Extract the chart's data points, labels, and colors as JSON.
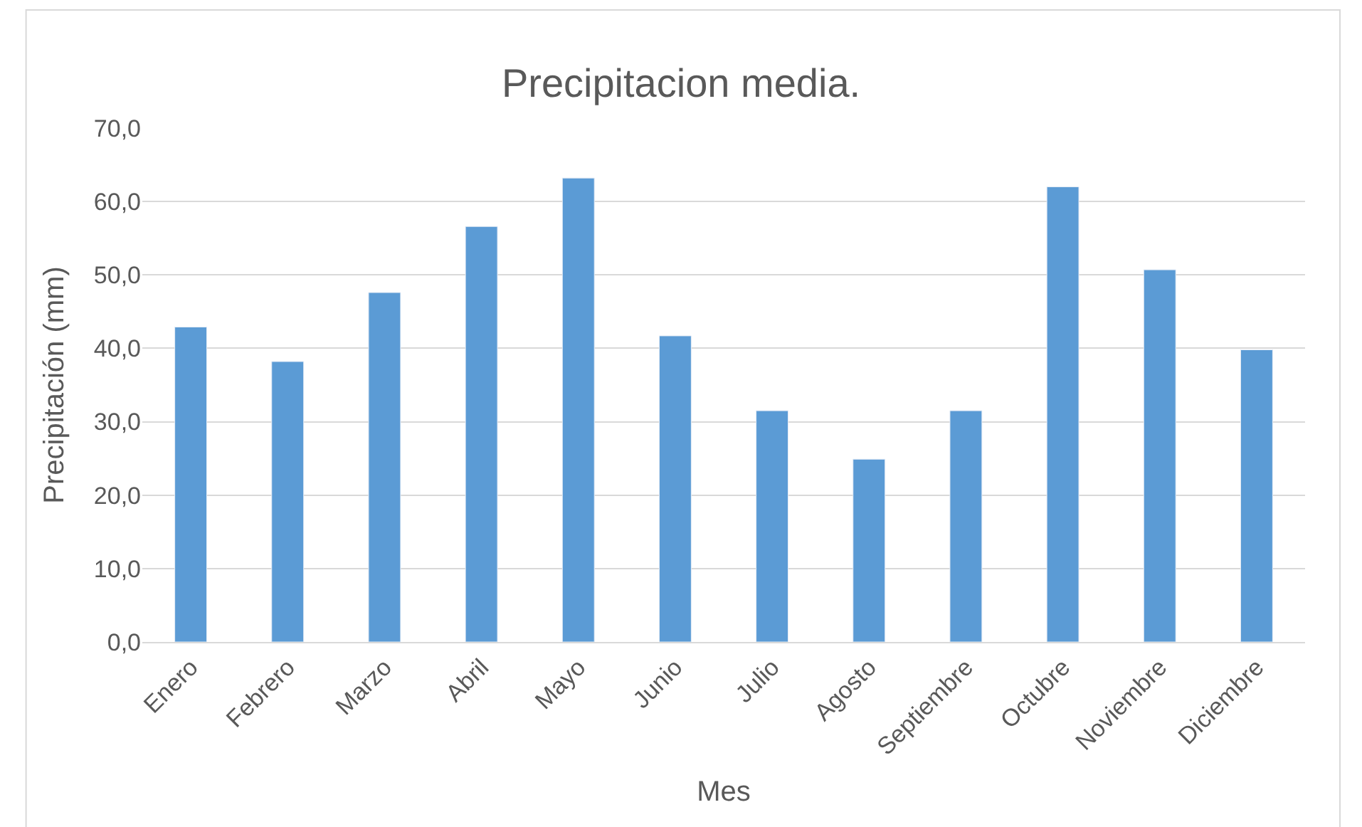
{
  "chart_data": {
    "type": "bar",
    "title": "Precipitacion media.",
    "xlabel": "Mes",
    "ylabel": "Precipitación (mm)",
    "categories": [
      "Enero",
      "Febrero",
      "Marzo",
      "Abril",
      "Mayo",
      "Junio",
      "Julio",
      "Agosto",
      "Septiembre",
      "Octubre",
      "Noviembre",
      "Diciembre"
    ],
    "values": [
      42.9,
      38.2,
      47.6,
      56.6,
      63.2,
      41.7,
      31.5,
      24.9,
      31.5,
      62.0,
      50.7,
      39.8
    ],
    "color": "#5b9bd5",
    "ylim": [
      0,
      70
    ],
    "yticks": [
      {
        "value": 0,
        "label": "0,0"
      },
      {
        "value": 10,
        "label": "10,0"
      },
      {
        "value": 20,
        "label": "20,0"
      },
      {
        "value": 30,
        "label": "30,0"
      },
      {
        "value": 40,
        "label": "40,0"
      },
      {
        "value": 50,
        "label": "50,0"
      },
      {
        "value": 60,
        "label": "60,0"
      },
      {
        "value": 70,
        "label": "70,0"
      }
    ],
    "grid": "y"
  }
}
